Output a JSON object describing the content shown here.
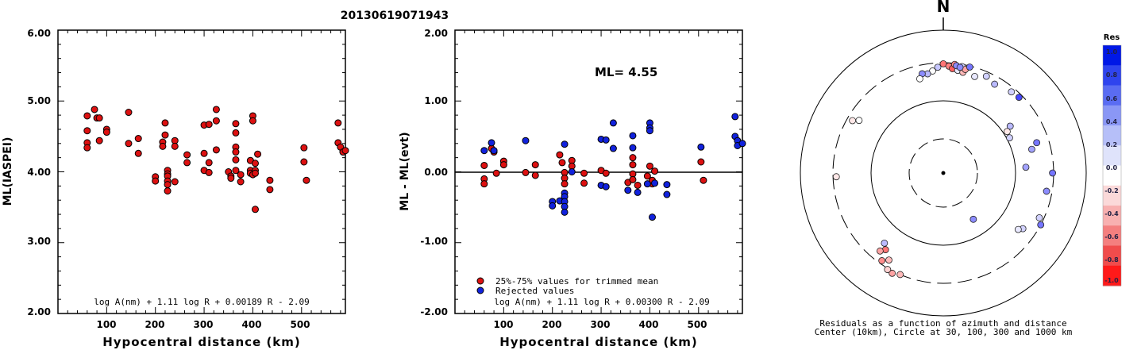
{
  "event_id": "20130619071943",
  "chart_data": [
    {
      "type": "scatter",
      "xlabel": "Hypocentral distance (km)",
      "ylabel": "ML(IASPEI)",
      "xlim": [
        0,
        590
      ],
      "ylim": [
        2.0,
        6.0
      ],
      "xticks": [
        "100",
        "200",
        "300",
        "400",
        "500"
      ],
      "yticks": [
        "2.00",
        "3.00",
        "4.00",
        "5.00",
        "6.00"
      ],
      "formula": "log A(nm) + 1.11 log R + 0.00189 R - 2.09",
      "series": [
        {
          "color": "#dd1111",
          "points": [
            [
              60,
              4.79
            ],
            [
              60,
              4.58
            ],
            [
              60,
              4.41
            ],
            [
              60,
              4.34
            ],
            [
              75,
              4.88
            ],
            [
              80,
              4.76
            ],
            [
              85,
              4.76
            ],
            [
              85,
              4.44
            ],
            [
              100,
              4.6
            ],
            [
              100,
              4.56
            ],
            [
              145,
              4.84
            ],
            [
              145,
              4.4
            ],
            [
              165,
              4.47
            ],
            [
              165,
              4.26
            ],
            [
              200,
              3.93
            ],
            [
              200,
              3.87
            ],
            [
              215,
              4.42
            ],
            [
              215,
              4.36
            ],
            [
              220,
              4.69
            ],
            [
              220,
              4.52
            ],
            [
              225,
              4.02
            ],
            [
              225,
              3.97
            ],
            [
              225,
              3.94
            ],
            [
              225,
              3.87
            ],
            [
              225,
              3.82
            ],
            [
              225,
              3.73
            ],
            [
              240,
              4.44
            ],
            [
              240,
              4.36
            ],
            [
              240,
              3.86
            ],
            [
              265,
              4.24
            ],
            [
              265,
              4.13
            ],
            [
              300,
              4.66
            ],
            [
              300,
              4.26
            ],
            [
              300,
              4.02
            ],
            [
              310,
              4.67
            ],
            [
              310,
              3.99
            ],
            [
              310,
              4.13
            ],
            [
              325,
              4.88
            ],
            [
              325,
              4.72
            ],
            [
              325,
              4.31
            ],
            [
              350,
              4.0
            ],
            [
              355,
              3.94
            ],
            [
              355,
              3.91
            ],
            [
              365,
              4.68
            ],
            [
              365,
              4.55
            ],
            [
              365,
              4.35
            ],
            [
              365,
              4.28
            ],
            [
              365,
              4.17
            ],
            [
              365,
              4.02
            ],
            [
              375,
              3.96
            ],
            [
              375,
              3.86
            ],
            [
              395,
              4.16
            ],
            [
              395,
              4.02
            ],
            [
              395,
              3.98
            ],
            [
              400,
              4.79
            ],
            [
              400,
              4.72
            ],
            [
              400,
              3.96
            ],
            [
              405,
              3.47
            ],
            [
              405,
              4.12
            ],
            [
              405,
              4.02
            ],
            [
              405,
              3.98
            ],
            [
              410,
              4.25
            ],
            [
              435,
              3.88
            ],
            [
              435,
              3.75
            ],
            [
              505,
              4.34
            ],
            [
              505,
              4.14
            ],
            [
              510,
              3.88
            ],
            [
              575,
              4.69
            ],
            [
              575,
              4.41
            ],
            [
              580,
              4.35
            ],
            [
              585,
              4.28
            ],
            [
              590,
              4.3
            ]
          ]
        }
      ]
    },
    {
      "type": "scatter",
      "xlabel": "Hypocentral distance (km)",
      "ylabel": "ML - ML(evt)",
      "xlim": [
        0,
        590
      ],
      "ylim": [
        -2.0,
        2.0
      ],
      "xticks": [
        "100",
        "200",
        "300",
        "400",
        "500"
      ],
      "yticks": [
        "-2.00",
        "-1.00",
        "0.00",
        "1.00",
        "2.00"
      ],
      "annotation": "ML= 4.55",
      "formula": "log A(nm) + 1.11 log R + 0.00300 R - 2.09",
      "legend_position": "bottom-left",
      "series": [
        {
          "name": "25%-75% values for trimmed mean",
          "color": "#dd1111",
          "points": [
            [
              60,
              0.09
            ],
            [
              60,
              -0.1
            ],
            [
              60,
              -0.17
            ],
            [
              75,
              0.33
            ],
            [
              80,
              0.28
            ],
            [
              85,
              -0.02
            ],
            [
              100,
              0.15
            ],
            [
              100,
              0.1
            ],
            [
              145,
              -0.01
            ],
            [
              165,
              0.1
            ],
            [
              165,
              -0.05
            ],
            [
              215,
              0.24
            ],
            [
              220,
              0.13
            ],
            [
              225,
              -0.01
            ],
            [
              225,
              -0.09
            ],
            [
              225,
              -0.17
            ],
            [
              240,
              0.16
            ],
            [
              240,
              0.08
            ],
            [
              265,
              -0.02
            ],
            [
              265,
              -0.16
            ],
            [
              300,
              0.02
            ],
            [
              310,
              -0.02
            ],
            [
              355,
              -0.15
            ],
            [
              365,
              0.2
            ],
            [
              365,
              0.1
            ],
            [
              365,
              -0.03
            ],
            [
              365,
              -0.11
            ],
            [
              375,
              -0.19
            ],
            [
              395,
              -0.06
            ],
            [
              400,
              0.08
            ],
            [
              405,
              -0.17
            ],
            [
              405,
              -0.12
            ],
            [
              410,
              0.01
            ],
            [
              505,
              0.14
            ],
            [
              510,
              -0.12
            ]
          ]
        },
        {
          "name": "Rejected values",
          "color": "#1122dd",
          "points": [
            [
              60,
              0.3
            ],
            [
              75,
              0.41
            ],
            [
              80,
              0.3
            ],
            [
              145,
              0.44
            ],
            [
              200,
              -0.42
            ],
            [
              200,
              -0.48
            ],
            [
              215,
              -0.41
            ],
            [
              225,
              0.39
            ],
            [
              225,
              -0.3
            ],
            [
              225,
              -0.35
            ],
            [
              225,
              -0.42
            ],
            [
              225,
              -0.49
            ],
            [
              225,
              -0.57
            ],
            [
              240,
              0.0
            ],
            [
              300,
              0.46
            ],
            [
              300,
              -0.19
            ],
            [
              310,
              0.45
            ],
            [
              310,
              -0.21
            ],
            [
              325,
              0.69
            ],
            [
              325,
              0.33
            ],
            [
              355,
              -0.26
            ],
            [
              365,
              0.51
            ],
            [
              365,
              0.34
            ],
            [
              375,
              -0.29
            ],
            [
              395,
              -0.17
            ],
            [
              400,
              0.69
            ],
            [
              400,
              0.62
            ],
            [
              400,
              0.58
            ],
            [
              405,
              -0.64
            ],
            [
              410,
              -0.16
            ],
            [
              435,
              -0.18
            ],
            [
              435,
              -0.32
            ],
            [
              505,
              0.35
            ],
            [
              575,
              0.78
            ],
            [
              575,
              0.5
            ],
            [
              580,
              0.44
            ],
            [
              580,
              0.37
            ],
            [
              590,
              0.4
            ]
          ]
        }
      ]
    },
    {
      "type": "scatter",
      "projection": "polar",
      "north_label": "N",
      "caption_line1": "Residuals as a function of azimuth and distance",
      "caption_line2": "Center (10km), Circle at 30, 100, 300 and 1000 km",
      "colorbar_title": "Res",
      "colorbar_ticks": [
        "1.0",
        "0.8",
        "0.6",
        "0.4",
        "0.2",
        "0.0",
        "-0.2",
        "-0.4",
        "-0.6",
        "-0.8",
        "-1.0"
      ],
      "colorbar_colors": [
        "#0018e6",
        "#2f44ee",
        "#5a6cf2",
        "#8a97f5",
        "#b6bff8",
        "#dfe3fb",
        "#ffffff",
        "#fbd9d9",
        "#f8b0b0",
        "#f47f7f",
        "#f04c4c",
        "#ff1a1a"
      ],
      "points_azimuth_radius": [
        [
          0,
          0.99
        ],
        [
          -3,
          0.96
        ],
        [
          -6,
          0.93
        ],
        [
          -9,
          0.91
        ],
        [
          -12,
          0.92
        ],
        [
          -14,
          0.88
        ],
        [
          3,
          0.97
        ],
        [
          5,
          0.95
        ],
        [
          8,
          0.94
        ],
        [
          11,
          0.93
        ],
        [
          6,
          0.99
        ],
        [
          10,
          0.98
        ],
        [
          12,
          0.96
        ],
        [
          7,
          0.98
        ],
        [
          9,
          0.97
        ],
        [
          14,
          0.99
        ],
        [
          18,
          0.92
        ],
        [
          24,
          0.96
        ],
        [
          30,
          0.93
        ],
        [
          40,
          0.96
        ],
        [
          45,
          0.97
        ],
        [
          55,
          0.74
        ],
        [
          57,
          0.69
        ],
        [
          62,
          0.68
        ],
        [
          72,
          0.89
        ],
        [
          75,
          0.83
        ],
        [
          86,
          0.75
        ],
        [
          90,
          0.99
        ],
        [
          100,
          0.95
        ],
        [
          115,
          0.96
        ],
        [
          118,
          1.0
        ],
        [
          125,
          0.88
        ],
        [
          127,
          0.85
        ],
        [
          147,
          0.5
        ],
        [
          -58,
          0.9
        ],
        [
          -60,
          0.95
        ],
        [
          -92,
          0.97
        ],
        [
          -140,
          0.83
        ],
        [
          -143,
          0.87
        ],
        [
          -141,
          0.91
        ],
        [
          -145,
          0.97
        ],
        [
          -148,
          0.93
        ],
        [
          -153,
          1.02
        ],
        [
          -157,
          1.0
        ],
        [
          -150,
          1.01
        ]
      ],
      "residuals": [
        -0.6,
        0.25,
        0.0,
        0.3,
        0.5,
        0.0,
        -0.55,
        -0.7,
        0.1,
        -0.3,
        -0.5,
        0.2,
        -0.4,
        0.5,
        0.5,
        0.6,
        0.1,
        0.2,
        0.3,
        0.2,
        0.8,
        0.3,
        -0.1,
        0.2,
        0.6,
        0.4,
        0.4,
        0.6,
        0.5,
        0.2,
        0.6,
        0.2,
        0.1,
        0.5,
        0.0,
        -0.1,
        -0.1,
        0.3,
        -0.6,
        -0.4,
        -0.5,
        -0.3,
        -0.4,
        -0.3,
        -0.2
      ]
    }
  ]
}
